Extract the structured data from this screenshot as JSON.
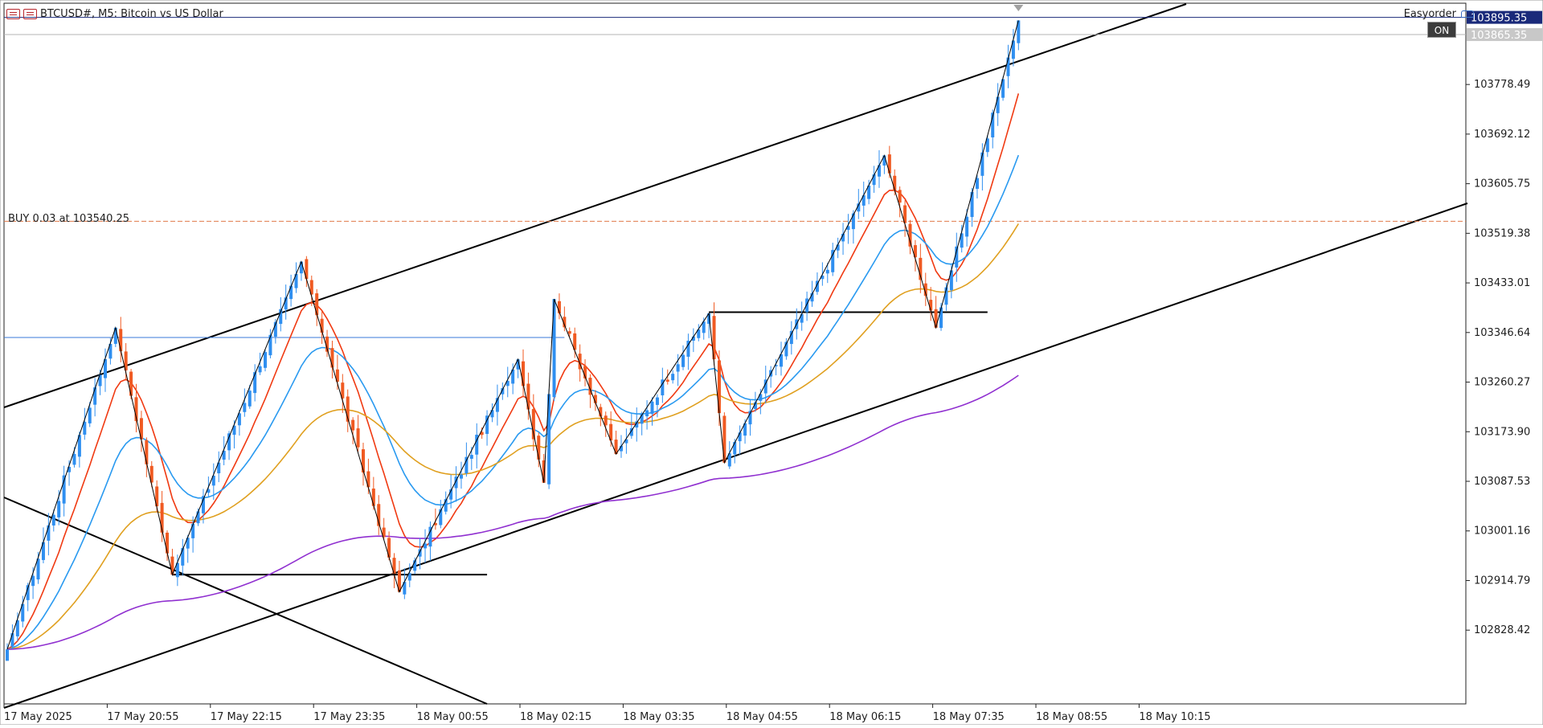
{
  "window": {
    "title": "BTCUSD#, M5:  Bitcoin vs US Dollar",
    "ea_name": "Easyorder",
    "ea_status": "ON"
  },
  "trade": {
    "label": "BUY 0.03 at 103540.25",
    "price": 103540.25
  },
  "price_tags": {
    "bid": "103895.35",
    "ask": "103865.35"
  },
  "colors": {
    "bull": "#2f8ff0",
    "bear": "#f05a22",
    "ema_fast": "#f03a12",
    "ema_mid": "#2a9af0",
    "ema_slow": "#e0a020",
    "ema_long": "#9030d0",
    "channel": "#000000",
    "zigzag": "#000000",
    "hline": "#3a7ad8",
    "buy_line": "#e07a4a",
    "bid_tag": "#1a2a7a",
    "ask_tag": "#c8c8c8"
  },
  "chart_data": {
    "type": "candlestick",
    "symbol": "BTCUSD#",
    "timeframe": "M5",
    "y_ticks": [
      103778.49,
      103692.12,
      103605.75,
      103519.38,
      103433.01,
      103346.64,
      103260.27,
      103173.9,
      103087.53,
      103001.16,
      102914.79,
      102828.42
    ],
    "x_ticks": [
      "17 May 2025",
      "17 May 20:55",
      "17 May 22:15",
      "17 May 23:35",
      "18 May 00:55",
      "18 May 02:15",
      "18 May 03:35",
      "18 May 04:55",
      "18 May 06:15",
      "18 May 07:35",
      "18 May 08:55",
      "18 May 10:15"
    ],
    "zigzag": [
      [
        0,
        102795
      ],
      [
        21,
        103355
      ],
      [
        32,
        102925
      ],
      [
        57,
        103470
      ],
      [
        76,
        102895
      ],
      [
        99,
        103300
      ],
      [
        104,
        103085
      ],
      [
        106,
        103405
      ],
      [
        118,
        103135
      ],
      [
        136,
        103380
      ],
      [
        139,
        103120
      ],
      [
        170,
        103655
      ],
      [
        180,
        103355
      ],
      [
        196,
        103890
      ]
    ],
    "levels": [
      {
        "type": "horizontal",
        "price": 103338,
        "from": 0,
        "to": 108
      },
      {
        "type": "horizontal",
        "price": 103382,
        "from": 136,
        "to": 190
      },
      {
        "type": "horizontal",
        "price": 102925,
        "from": 32,
        "to": 93
      }
    ]
  }
}
